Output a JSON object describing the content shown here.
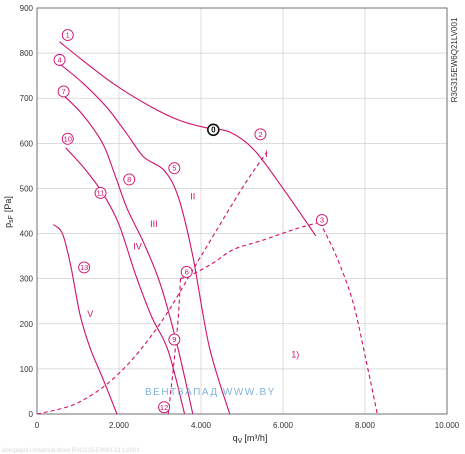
{
  "chart_data": {
    "type": "line",
    "model": "R3G315EW6Q21LV001",
    "xlabel_main": "q",
    "xlabel_sub": "V",
    "xlabel_unit": "[m³/h]",
    "ylabel_main": "p",
    "ylabel_sub": "sF",
    "ylabel_unit": "[Pa]",
    "xlim": [
      0,
      10000
    ],
    "ylim": [
      0,
      900
    ],
    "xticks": [
      "0",
      "2.000",
      "4.000",
      "6.000",
      "8.000",
      "10.000"
    ],
    "yticks": [
      "0",
      "100",
      "200",
      "300",
      "400",
      "500",
      "600",
      "700",
      "800",
      "900"
    ],
    "grid": true,
    "watermark": "ВЕНТЗАПАД  WWW.BY",
    "colors": {
      "curve": "#d0106d",
      "grid": "#c8c8c8",
      "axis": "#555555"
    },
    "series": [
      {
        "label": "1",
        "x": [
          550,
          1100,
          1900,
          2800,
          3500,
          4100,
          4700,
          5300,
          6000,
          6800
        ],
        "y": [
          825,
          785,
          730,
          680,
          650,
          635,
          625,
          585,
          500,
          395
        ]
      },
      {
        "label": "4",
        "x": [
          500,
          1100,
          1700,
          2200,
          2600,
          3100,
          3450,
          3800,
          4200,
          4700
        ],
        "y": [
          780,
          735,
          680,
          620,
          570,
          540,
          480,
          350,
          150,
          0
        ]
      },
      {
        "label": "7",
        "x": [
          600,
          1100,
          1600,
          1900,
          2200,
          2600,
          3000,
          3400,
          3800
        ],
        "y": [
          710,
          665,
          600,
          530,
          455,
          380,
          290,
          160,
          0
        ]
      },
      {
        "label": "10",
        "x": [
          700,
          1150,
          1600,
          2000,
          2400,
          2800,
          3200,
          3600
        ],
        "y": [
          590,
          545,
          490,
          420,
          310,
          215,
          140,
          0
        ]
      },
      {
        "label": "13",
        "x": [
          400,
          620,
          820,
          1050,
          1300,
          1600,
          1950
        ],
        "y": [
          420,
          400,
          330,
          220,
          145,
          80,
          0
        ]
      },
      {
        "label": "I",
        "x": [
          0,
          1000,
          2000,
          3000,
          4000,
          5000,
          5600
        ],
        "y": [
          0,
          25,
          90,
          200,
          350,
          500,
          580
        ]
      },
      {
        "label": "II",
        "x": [
          3500,
          3800,
          4300,
          4800,
          5500,
          6300,
          6900
        ],
        "y": [
          300,
          310,
          335,
          365,
          385,
          410,
          425
        ]
      },
      {
        "label": "III",
        "x": [
          3500,
          3450,
          3380,
          3300,
          3200
        ],
        "y": [
          300,
          220,
          150,
          80,
          0
        ]
      },
      {
        "label": "IV",
        "x": [
          6900,
          7300,
          7700,
          8000,
          8300
        ],
        "y": [
          425,
          350,
          250,
          130,
          0
        ]
      }
    ],
    "markers": [
      {
        "label": "1",
        "x": 750,
        "y": 840
      },
      {
        "label": "4",
        "x": 550,
        "y": 785
      },
      {
        "label": "7",
        "x": 650,
        "y": 715
      },
      {
        "label": "10",
        "x": 750,
        "y": 610
      },
      {
        "label": "11",
        "x": 1550,
        "y": 490
      },
      {
        "label": "13",
        "x": 1150,
        "y": 325
      },
      {
        "label": "8",
        "x": 2250,
        "y": 520
      },
      {
        "label": "5",
        "x": 3350,
        "y": 545
      },
      {
        "label": "6",
        "x": 3650,
        "y": 315
      },
      {
        "label": "9",
        "x": 3350,
        "y": 165
      },
      {
        "label": "12",
        "x": 3100,
        "y": 15
      },
      {
        "label": "2",
        "x": 5450,
        "y": 620
      },
      {
        "label": "3",
        "x": 6950,
        "y": 430
      }
    ],
    "op_point": {
      "label": "0",
      "x": 4300,
      "y": 630
    },
    "regions": [
      {
        "label": "I",
        "x": 5600,
        "y": 570
      },
      {
        "label": "II",
        "x": 3800,
        "y": 475
      },
      {
        "label": "III",
        "x": 2850,
        "y": 415
      },
      {
        "label": "IV",
        "x": 2450,
        "y": 365
      },
      {
        "label": "V",
        "x": 1300,
        "y": 215
      },
      {
        "label": "1)",
        "x": 6300,
        "y": 125
      }
    ]
  },
  "footnote": "ebmpapst  Universal-drive  R3G315-EW63-21  LV001"
}
